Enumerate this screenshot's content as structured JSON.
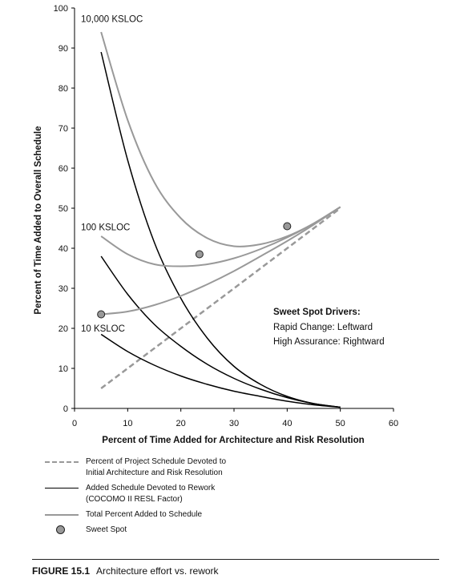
{
  "chart_data": {
    "type": "line",
    "xlabel": "Percent of Time Added for Architecture and Risk Resolution",
    "ylabel": "Percent of Time Added to Overall Schedule",
    "xlim": [
      0,
      60
    ],
    "ylim": [
      0,
      100
    ],
    "xticks": [
      "0",
      "10",
      "20",
      "30",
      "40",
      "50",
      "60"
    ],
    "yticks": [
      "0",
      "10",
      "20",
      "30",
      "40",
      "50",
      "60",
      "70",
      "80",
      "90",
      "100"
    ],
    "grid": false,
    "series": [
      {
        "name": "Percent of Project Schedule Devoted to\nInitial Architecture and Risk Resolution",
        "style": "dashed",
        "color": "#999999",
        "x": [
          5,
          50
        ],
        "y": [
          5,
          50
        ]
      },
      {
        "name": "Added Schedule Devoted to Rework\n(COCOMO II RESL Factor)",
        "style": "solid",
        "color": "#000000",
        "group": "10,000 KSLOC",
        "x": [
          5,
          10,
          15,
          20,
          25,
          30,
          35,
          40,
          45,
          50
        ],
        "y": [
          89,
          62,
          41.5,
          27.5,
          17.5,
          10.5,
          6,
          3,
          1.2,
          0.3
        ]
      },
      {
        "style": "solid",
        "color": "#000000",
        "group": "100 KSLOC",
        "x": [
          5,
          10,
          15,
          20,
          25,
          30,
          35,
          40,
          45,
          50
        ],
        "y": [
          38,
          28.5,
          21,
          15.5,
          11,
          7.5,
          4.8,
          2.7,
          1.2,
          0.3
        ]
      },
      {
        "style": "solid",
        "color": "#000000",
        "group": "10 KSLOC",
        "x": [
          5,
          10,
          15,
          20,
          25,
          30,
          35,
          40,
          45,
          50
        ],
        "y": [
          18.5,
          14.2,
          10.8,
          8.1,
          6,
          4.3,
          3,
          1.8,
          0.9,
          0.3
        ]
      },
      {
        "name": "Total Percent Added to Schedule",
        "style": "solid",
        "color": "#999999",
        "group": "10,000 KSLOC",
        "x": [
          5,
          10,
          15,
          20,
          25,
          30,
          35,
          40,
          45,
          50
        ],
        "y": [
          94,
          72,
          56.5,
          47.5,
          42.5,
          40.5,
          41,
          43,
          46.2,
          50.3
        ]
      },
      {
        "style": "solid",
        "color": "#999999",
        "group": "100 KSLOC",
        "x": [
          5,
          10,
          15,
          20,
          25,
          30,
          35,
          40,
          45,
          50
        ],
        "y": [
          43,
          38.5,
          36,
          35.5,
          36,
          37.5,
          39.8,
          42.7,
          46.2,
          50.3
        ]
      },
      {
        "style": "solid",
        "color": "#999999",
        "group": "10 KSLOC",
        "x": [
          5,
          10,
          15,
          20,
          25,
          30,
          35,
          40,
          45,
          50
        ],
        "y": [
          23.5,
          24.2,
          25.8,
          28.1,
          31,
          34.3,
          38,
          41.8,
          45.9,
          50.3
        ]
      }
    ],
    "sweet_spots": {
      "name": "Sweet Spot",
      "points": [
        {
          "x": 5,
          "y": 23.5
        },
        {
          "x": 23.5,
          "y": 38.5
        },
        {
          "x": 40,
          "y": 45.5
        }
      ]
    },
    "curve_labels": [
      {
        "text": "10,000 KSLOC",
        "x": 1.2,
        "y": 96.5
      },
      {
        "text": "100 KSLOC",
        "x": 1.2,
        "y": 44.5
      },
      {
        "text": "10 KSLOC",
        "x": 1.2,
        "y": 19.2
      }
    ],
    "annotation": {
      "title": "Sweet Spot Drivers:",
      "lines": [
        "Rapid Change: Leftward",
        "High Assurance: Rightward"
      ]
    },
    "legend_position": "bottom"
  },
  "caption": {
    "figure": "FIGURE 15.1",
    "text": "Architecture effort vs. rework"
  }
}
